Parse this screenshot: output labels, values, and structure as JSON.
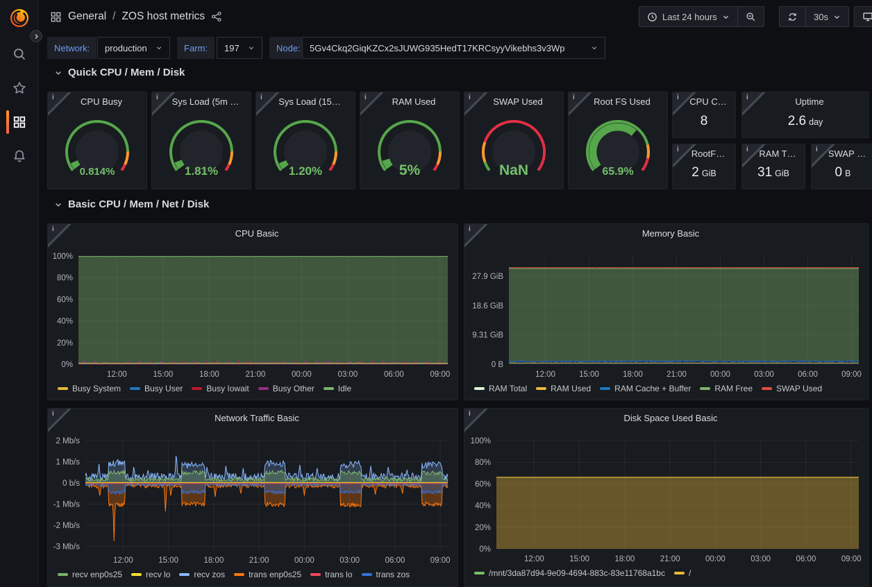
{
  "header": {
    "breadcrumb": {
      "folder": "General",
      "separator": "/",
      "title": "ZOS host metrics"
    },
    "time_range": "Last 24 hours",
    "refresh_interval": "30s"
  },
  "icons": {
    "info_glyph": "i",
    "sidebar": [
      "grafana-logo",
      "search-icon",
      "star-icon",
      "dashboards-grid-icon",
      "alerting-bell-icon"
    ],
    "topbar": [
      "apps-grid-icon",
      "share-alt-icon",
      "clock-icon",
      "chevron-down-icon",
      "zoom-out-icon",
      "refresh-icon",
      "monitor-icon"
    ]
  },
  "variables": [
    {
      "label": "Network:",
      "value": "production"
    },
    {
      "label": "Farm:",
      "value": "197"
    },
    {
      "label": "Node:",
      "value": "5Gv4Ckq2GiqKZCx2sJUWG935HedT17KRCsyyVikebhs3v3Wp"
    }
  ],
  "sections": [
    "Quick CPU / Mem / Disk",
    "Basic CPU / Mem / Net / Disk"
  ],
  "colors": {
    "green": "#56A64B",
    "orange": "#FF9830",
    "red": "#E02F44",
    "value_text": "#73BF69",
    "page_bg": "#0E0F13",
    "panel_bg": "#181B1F",
    "accent_orange": "#F55F3E",
    "label_blue": "#6E9BF0"
  },
  "gauges": [
    {
      "id": "cpu-busy",
      "title": "CPU Busy",
      "text": "0.814%",
      "dash": 0.055,
      "font": 15,
      "segments": [
        [
          0,
          0.85,
          "green"
        ],
        [
          0.85,
          0.95,
          "orange"
        ],
        [
          0.95,
          1,
          "red"
        ]
      ]
    },
    {
      "id": "sys-load-5m",
      "title": "Sys Load (5m …",
      "text": "1.81%",
      "dash": 0.06,
      "font": 17,
      "segments": [
        [
          0,
          0.85,
          "green"
        ],
        [
          0.85,
          0.95,
          "orange"
        ],
        [
          0.95,
          1,
          "red"
        ]
      ]
    },
    {
      "id": "sys-load-15m",
      "title": "Sys Load (15…",
      "text": "1.20%",
      "dash": 0.055,
      "font": 17,
      "segments": [
        [
          0,
          0.85,
          "green"
        ],
        [
          0.85,
          0.95,
          "orange"
        ],
        [
          0.95,
          1,
          "red"
        ]
      ]
    },
    {
      "id": "ram-used",
      "title": "RAM Used",
      "text": "5%",
      "dash": 0.075,
      "font": 21,
      "segments": [
        [
          0,
          0.85,
          "green"
        ],
        [
          0.85,
          0.95,
          "orange"
        ],
        [
          0.95,
          1,
          "red"
        ]
      ]
    },
    {
      "id": "swap-used",
      "title": "SWAP Used",
      "text": "NaN",
      "dash": 0,
      "font": 21,
      "segments": [
        [
          0,
          0.07,
          "green"
        ],
        [
          0.07,
          0.22,
          "orange"
        ],
        [
          0.22,
          1,
          "red"
        ]
      ]
    },
    {
      "id": "root-fs-used",
      "title": "Root FS Used",
      "text": "65.9%",
      "dash": 0.659,
      "font": 16,
      "segments": [
        [
          0,
          0.8,
          "green"
        ],
        [
          0.8,
          0.9,
          "orange"
        ],
        [
          0.9,
          1,
          "red"
        ]
      ]
    }
  ],
  "stats": [
    {
      "id": "cpu-cores",
      "title": "CPU C…",
      "value": "8",
      "unit": ""
    },
    {
      "id": "uptime",
      "title": "Uptime",
      "value": "2.6",
      "unit": "day"
    },
    {
      "id": "rootfs-total",
      "title": "RootF…",
      "value": "2",
      "unit": "GiB"
    },
    {
      "id": "ram-total",
      "title": "RAM T…",
      "value": "31",
      "unit": "GiB"
    },
    {
      "id": "swap-total",
      "title": "SWAP …",
      "value": "0",
      "unit": "B"
    }
  ],
  "chart_data": [
    {
      "id": "cpu-basic",
      "type": "area",
      "title": "CPU Basic",
      "x_domain": [
        0,
        24
      ],
      "xticks": [
        2.5,
        5.5,
        8.5,
        11.5,
        14.5,
        17.5,
        20.5,
        23.5
      ],
      "xlabels": [
        "12:00",
        "15:00",
        "18:00",
        "21:00",
        "00:00",
        "03:00",
        "06:00",
        "09:00"
      ],
      "y_domain": [
        0,
        100
      ],
      "yticks": [
        {
          "v": 0,
          "label": "0%"
        },
        {
          "v": 20,
          "label": "20%"
        },
        {
          "v": 40,
          "label": "40%"
        },
        {
          "v": 60,
          "label": "60%"
        },
        {
          "v": 80,
          "label": "80%"
        },
        {
          "v": 100,
          "label": "100%"
        }
      ],
      "legend": [
        {
          "name": "Busy System",
          "color": "#EAB839"
        },
        {
          "name": "Busy User",
          "color": "#1F78C1"
        },
        {
          "name": "Busy Iowait",
          "color": "#C4162A"
        },
        {
          "name": "Busy Other",
          "color": "#962D82"
        },
        {
          "name": "Idle",
          "color": "#7EB26D"
        }
      ],
      "series": [
        {
          "name": "Idle",
          "color": "#7EB26D",
          "fill": 0.4,
          "base": 99.6,
          "noise": 0.1
        },
        {
          "name": "Busy Other",
          "color": "#962D82",
          "base": 0.75,
          "noise": 0.45,
          "clampMin": 0.1,
          "pulse": {
            "period": 0.72,
            "width": 0.12,
            "level": 2.7,
            "jitter": 0.5
          }
        },
        {
          "name": "Busy Iowait",
          "color": "#C4162A",
          "base": 0.18,
          "noise": 0.12,
          "clampMin": 0.05
        },
        {
          "name": "Busy User",
          "color": "#1F78C1",
          "base": 0.5,
          "noise": 0.25,
          "clampMin": 0.1
        },
        {
          "name": "Busy System",
          "color": "#EAB839",
          "base": 0.9,
          "noise": 0.2,
          "clampMin": 0.3
        }
      ]
    },
    {
      "id": "memory-basic",
      "type": "area",
      "title": "Memory Basic",
      "x_domain": [
        0,
        24
      ],
      "xticks": [
        2.5,
        5.5,
        8.5,
        11.5,
        14.5,
        17.5,
        20.5,
        23.5
      ],
      "xlabels": [
        "12:00",
        "15:00",
        "18:00",
        "21:00",
        "00:00",
        "03:00",
        "06:00",
        "09:00"
      ],
      "y_domain": [
        0,
        34.3
      ],
      "yticks": [
        {
          "v": 0,
          "label": "0 B"
        },
        {
          "v": 9.31,
          "label": "9.31 GiB"
        },
        {
          "v": 18.6,
          "label": "18.6 GiB"
        },
        {
          "v": 27.9,
          "label": "27.9 GiB"
        }
      ],
      "legend": [
        {
          "name": "RAM Total",
          "color": "#E0F9D7"
        },
        {
          "name": "RAM Used",
          "color": "#EAB839"
        },
        {
          "name": "RAM Cache + Buffer",
          "color": "#1F78C1"
        },
        {
          "name": "RAM Free",
          "color": "#7EB26D"
        },
        {
          "name": "SWAP Used",
          "color": "#E24D42"
        }
      ],
      "series": [
        {
          "name": "RAM Free",
          "color": "#7EB26D",
          "fill": 0.4,
          "base": 30.35,
          "noise": 0.05
        },
        {
          "name": "RAM Cache + Buffer",
          "color": "#2E67B8",
          "fillColor": "#0D2B52",
          "fill": 0.95,
          "base": 0.95,
          "noise": 0.28,
          "clampMin": 0.5
        },
        {
          "name": "RAM Used",
          "color": "#EAB839",
          "base": 0.38,
          "noise": 0.03
        },
        {
          "name": "RAM Total",
          "color": "#E0513E",
          "base": 30.6,
          "noise": 0
        }
      ]
    },
    {
      "id": "network-traffic-basic",
      "type": "area",
      "title": "Network Traffic Basic",
      "x_domain": [
        0,
        24
      ],
      "xticks": [
        2.5,
        5.5,
        8.5,
        11.5,
        14.5,
        17.5,
        20.5,
        23.5
      ],
      "xlabels": [
        "12:00",
        "15:00",
        "18:00",
        "21:00",
        "00:00",
        "03:00",
        "06:00",
        "09:00"
      ],
      "y_domain": [
        -3.18,
        2.0
      ],
      "yticks": [
        {
          "v": 2,
          "label": "2 Mb/s"
        },
        {
          "v": 1,
          "label": "1 Mb/s"
        },
        {
          "v": 0,
          "label": "0 b/s"
        },
        {
          "v": -1,
          "label": "-1 Mb/s"
        },
        {
          "v": -2,
          "label": "-2 Mb/s"
        },
        {
          "v": -3,
          "label": "-3 Mb/s"
        }
      ],
      "legend": [
        {
          "name": "recv enp0s25",
          "color": "#7EB26D"
        },
        {
          "name": "recv lo",
          "color": "#FADE2A"
        },
        {
          "name": "recv zos",
          "color": "#8AB8FF"
        },
        {
          "name": "trans enp0s25",
          "color": "#FF780A"
        },
        {
          "name": "trans lo",
          "color": "#F2495C"
        },
        {
          "name": "trans zos",
          "color": "#3274D9"
        }
      ],
      "series": [
        {
          "name": "recv zos",
          "color": "#8AB8FF",
          "fill": 0.22,
          "base": 0.3,
          "noise": 0.18,
          "bnoise": 0.16,
          "clampMin": 0.02,
          "bursts": [
            [
              1.55,
              2.6,
              0.95
            ],
            [
              6.35,
              7.9,
              0.85
            ],
            [
              11.9,
              13.25,
              0.92
            ],
            [
              16.9,
              18.3,
              0.88
            ],
            [
              22.3,
              23.65,
              0.85
            ]
          ],
          "spikes": [
            [
              0.9,
              0.9
            ],
            [
              3.2,
              0.75
            ],
            [
              4.15,
              0.6
            ],
            [
              6.02,
              1.55
            ],
            [
              8.05,
              0.75
            ],
            [
              9.3,
              0.8
            ],
            [
              10.45,
              0.7
            ],
            [
              14.2,
              0.85
            ],
            [
              15.35,
              0.7
            ],
            [
              18.9,
              0.8
            ],
            [
              20.05,
              0.75
            ],
            [
              21.3,
              0.62
            ]
          ]
        },
        {
          "name": "recv enp0s25",
          "color": "#7EB26D",
          "fill": 0.32,
          "base": 0.16,
          "noise": 0.1,
          "bnoise": 0.1,
          "clampMin": 0.02,
          "bursts": [
            [
              1.55,
              2.6,
              0.5
            ],
            [
              6.35,
              7.9,
              0.48
            ],
            [
              11.9,
              13.25,
              0.5
            ],
            [
              16.9,
              18.3,
              0.48
            ],
            [
              22.3,
              23.65,
              0.47
            ]
          ]
        },
        {
          "name": "recv lo",
          "color": "#FADE2A",
          "base": 0.02,
          "noise": 0
        },
        {
          "name": "trans enp0s25",
          "color": "#FF780A",
          "fill": 0.3,
          "base": -0.14,
          "noise": 0.1,
          "bnoise": 0.1,
          "clampMax": -0.02,
          "bursts": [
            [
              1.55,
              2.6,
              -1.02
            ],
            [
              6.35,
              7.9,
              -1.0
            ],
            [
              11.9,
              13.25,
              -1.02
            ],
            [
              16.9,
              18.3,
              -1.05
            ],
            [
              22.3,
              23.65,
              -1.0
            ]
          ],
          "spikes": [
            [
              1.9,
              -2.75,
              0.07
            ],
            [
              0.95,
              -0.6
            ],
            [
              5.3,
              -1.35
            ],
            [
              5.65,
              -0.6
            ],
            [
              8.6,
              -0.65
            ],
            [
              10.3,
              -0.5
            ],
            [
              14.5,
              -0.6
            ],
            [
              19.2,
              -0.55
            ],
            [
              21.0,
              -0.5
            ]
          ]
        },
        {
          "name": "trans zos",
          "color": "#3274D9",
          "fill": 0.3,
          "base": -0.09,
          "noise": 0.06,
          "bnoise": 0.08,
          "clampMax": -0.02,
          "bursts": [
            [
              1.55,
              2.6,
              -0.45
            ],
            [
              6.35,
              7.9,
              -0.43
            ],
            [
              11.9,
              13.25,
              -0.45
            ],
            [
              16.9,
              18.3,
              -0.44
            ],
            [
              22.3,
              23.65,
              -0.43
            ]
          ]
        },
        {
          "name": "trans lo",
          "color": "#F2495C",
          "base": -0.03,
          "noise": 0
        }
      ]
    },
    {
      "id": "disk-space-used-basic",
      "type": "area",
      "title": "Disk Space Used Basic",
      "x_domain": [
        0,
        24
      ],
      "xticks": [
        2.5,
        5.5,
        8.5,
        11.5,
        14.5,
        17.5,
        20.5,
        23.5
      ],
      "xlabels": [
        "12:00",
        "15:00",
        "18:00",
        "21:00",
        "00:00",
        "03:00",
        "06:00",
        "09:00"
      ],
      "y_domain": [
        0,
        100
      ],
      "yticks": [
        {
          "v": 0,
          "label": "0%"
        },
        {
          "v": 20,
          "label": "20%"
        },
        {
          "v": 40,
          "label": "40%"
        },
        {
          "v": 60,
          "label": "60%"
        },
        {
          "v": 80,
          "label": "80%"
        },
        {
          "v": 100,
          "label": "100%"
        }
      ],
      "legend": [
        {
          "name": "/mnt/3da87d94-9e09-4694-883c-83e11768a1bc",
          "color": "#73BF69"
        },
        {
          "name": "/",
          "color": "#EAB839"
        }
      ],
      "series": [
        {
          "name": "/mnt/3da87d94-9e09-4694-883c-83e11768a1bc",
          "color": "#73BF69",
          "base": 66.0,
          "noise": 0
        },
        {
          "name": "/",
          "color": "#EAB839",
          "fill": 0.38,
          "base": 66.2,
          "noise": 0
        }
      ]
    }
  ]
}
